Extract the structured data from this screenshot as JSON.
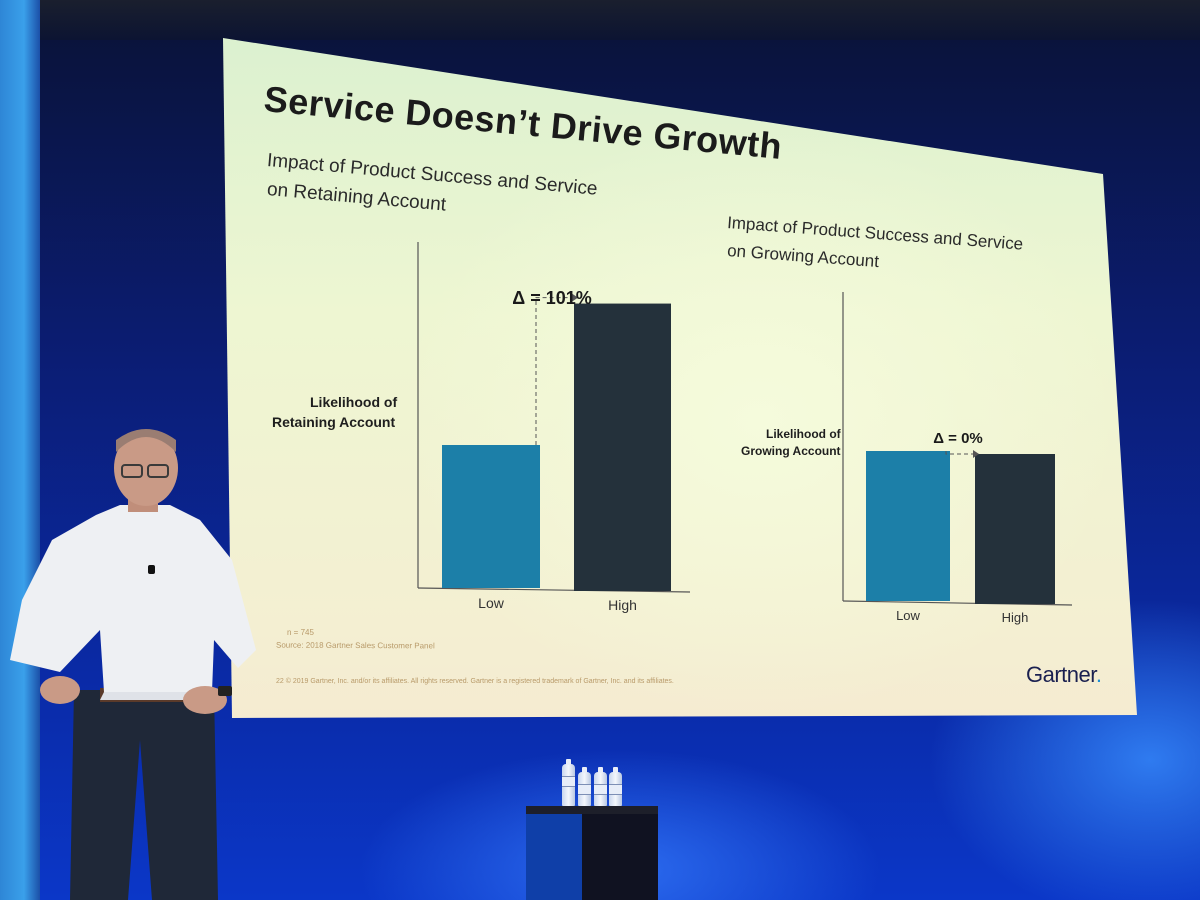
{
  "slide": {
    "title": "Service Doesn’t Drive Growth",
    "footer_n": "n = 745",
    "footer_source": "Source: 2018 Gartner Sales Customer Panel",
    "footer_copyright": "22     © 2019 Gartner, Inc. and/or its affiliates. All rights reserved. Gartner is a registered trademark of Gartner, Inc. and its affiliates.",
    "logo_text": "Gartner",
    "logo_dot": "."
  },
  "left_chart": {
    "subtitle_line1": "Impact of Product Success and Service",
    "subtitle_line2": "on Retaining Account",
    "ylabel_line1": "Likelihood of",
    "ylabel_line2": "Retaining Account"
  },
  "right_chart": {
    "subtitle_line1": "Impact of Product Success and Service",
    "subtitle_line2": "on Growing Account",
    "ylabel_line1": "Likelihood of",
    "ylabel_line2": "Growing Account"
  },
  "chart_data": [
    {
      "type": "bar",
      "title": "Impact of Product Success and Service on Retaining Account",
      "ylabel": "Likelihood of Retaining Account",
      "categories": [
        "Low",
        "High"
      ],
      "values": [
        1.0,
        2.01
      ],
      "bar_colors": [
        "#1c7fa8",
        "#24313b"
      ],
      "annotation": "Δ = 101%",
      "grid": false
    },
    {
      "type": "bar",
      "title": "Impact of Product Success and Service on Growing Account",
      "ylabel": "Likelihood of Growing Account",
      "categories": [
        "Low",
        "High"
      ],
      "values": [
        1.0,
        1.0
      ],
      "bar_colors": [
        "#1c7fa8",
        "#24313b"
      ],
      "annotation": "Δ = 0%",
      "grid": false
    }
  ]
}
